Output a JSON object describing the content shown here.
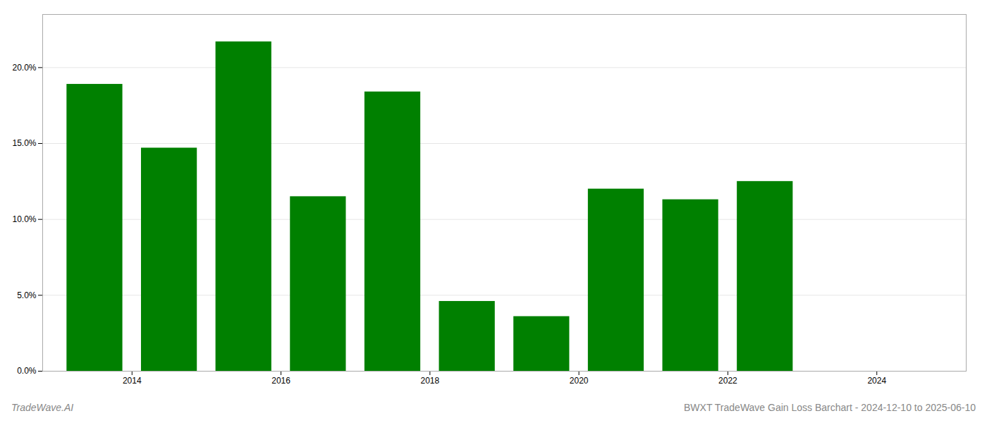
{
  "chart_data": {
    "type": "bar",
    "title": "BWXT TradeWave Gain Loss Barchart - 2024-12-10 to 2025-06-10",
    "annotations": [
      "TradeWave.AI"
    ],
    "x": [
      2013,
      2014,
      2015,
      2016,
      2017,
      2018,
      2019,
      2020,
      2021,
      2022
    ],
    "values": [
      0.189,
      0.147,
      0.217,
      0.115,
      0.184,
      0.046,
      0.036,
      0.12,
      0.113,
      0.125
    ],
    "color": "#008000",
    "xlim": [
      2012.3,
      2024.7
    ],
    "xticks": [
      {
        "value": 2013.5,
        "label": "2014"
      },
      {
        "value": 2015.5,
        "label": "2016"
      },
      {
        "value": 2017.5,
        "label": "2018"
      },
      {
        "value": 2019.5,
        "label": "2020"
      },
      {
        "value": 2021.5,
        "label": "2022"
      },
      {
        "value": 2023.5,
        "label": "2024"
      }
    ],
    "ylim": [
      0,
      0.235
    ],
    "yticks": [
      {
        "value": 0.0,
        "label": "0.0%"
      },
      {
        "value": 0.05,
        "label": "5.0%"
      },
      {
        "value": 0.1,
        "label": "10.0%"
      },
      {
        "value": 0.15,
        "label": "15.0%"
      },
      {
        "value": 0.2,
        "label": "20.0%"
      }
    ],
    "grid": true
  }
}
